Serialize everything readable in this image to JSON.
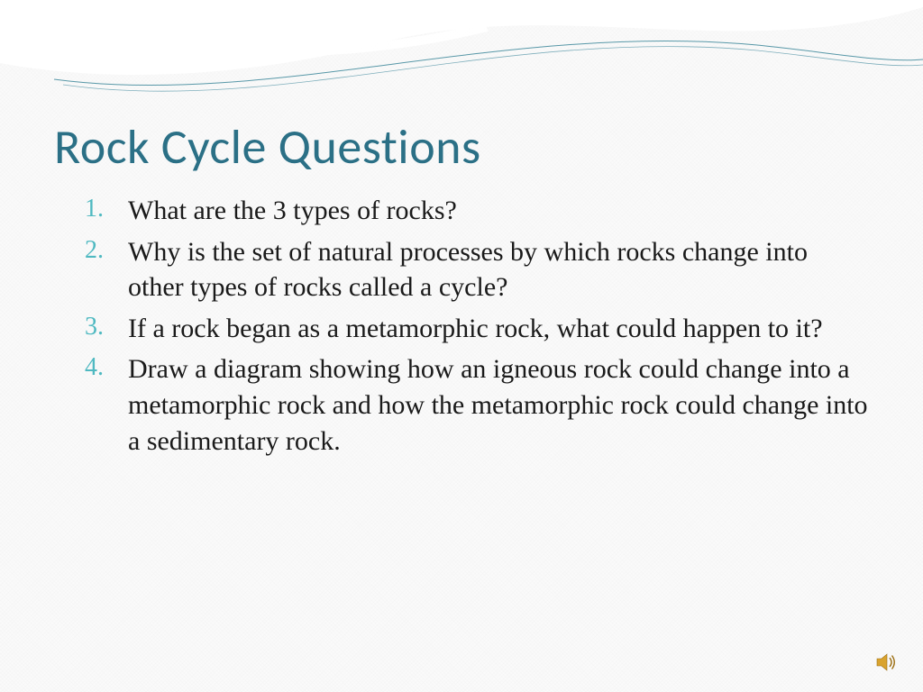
{
  "slide": {
    "title": "Rock Cycle Questions",
    "title_color": "#2b7086",
    "number_color": "#4fb9c1",
    "body_text_color": "#161616",
    "background_color": "#fafafa",
    "questions": [
      "What are the 3 types of rocks?",
      "Why is the set of natural processes by which rocks change into other types of rocks called a cycle?",
      "If a rock began as a metamorphic rock, what could happen to it?",
      "Draw a diagram showing how an igneous rock could change into a metamorphic rock and how the metamorphic rock could change into a sedimentary rock."
    ],
    "title_fontsize_pt": 40,
    "body_fontsize_pt": 22
  },
  "theme": {
    "wave_gradient_start": "#8fd7e4",
    "wave_gradient_end": "#5bb9cd",
    "wave_white": "#ffffff",
    "thin_line_color": "#2f7f94"
  },
  "icons": {
    "speaker": "speaker-icon"
  }
}
